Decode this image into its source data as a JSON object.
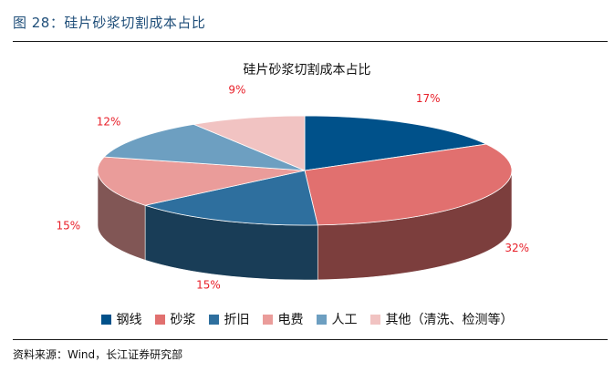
{
  "figure_title": "图 28：硅片砂浆切割成本占比",
  "source": "资料来源：Wind，长江证券研究部",
  "colors": {
    "slices": [
      "#00518a",
      "#e1706f",
      "#2e6f9e",
      "#ea9c9a",
      "#6d9fc1",
      "#f1c3c2"
    ],
    "label": "#e8202a"
  },
  "chart_data": {
    "type": "pie",
    "title": "硅片砂浆切割成本占比",
    "categories": [
      "钢线",
      "砂浆",
      "折旧",
      "电费",
      "人工",
      "其他（清洗、检测等）"
    ],
    "values": [
      17,
      32,
      15,
      15,
      12,
      9
    ],
    "labels": [
      "17%",
      "32%",
      "15%",
      "15%",
      "12%",
      "9%"
    ],
    "legend": "bottom",
    "style": "3d"
  }
}
